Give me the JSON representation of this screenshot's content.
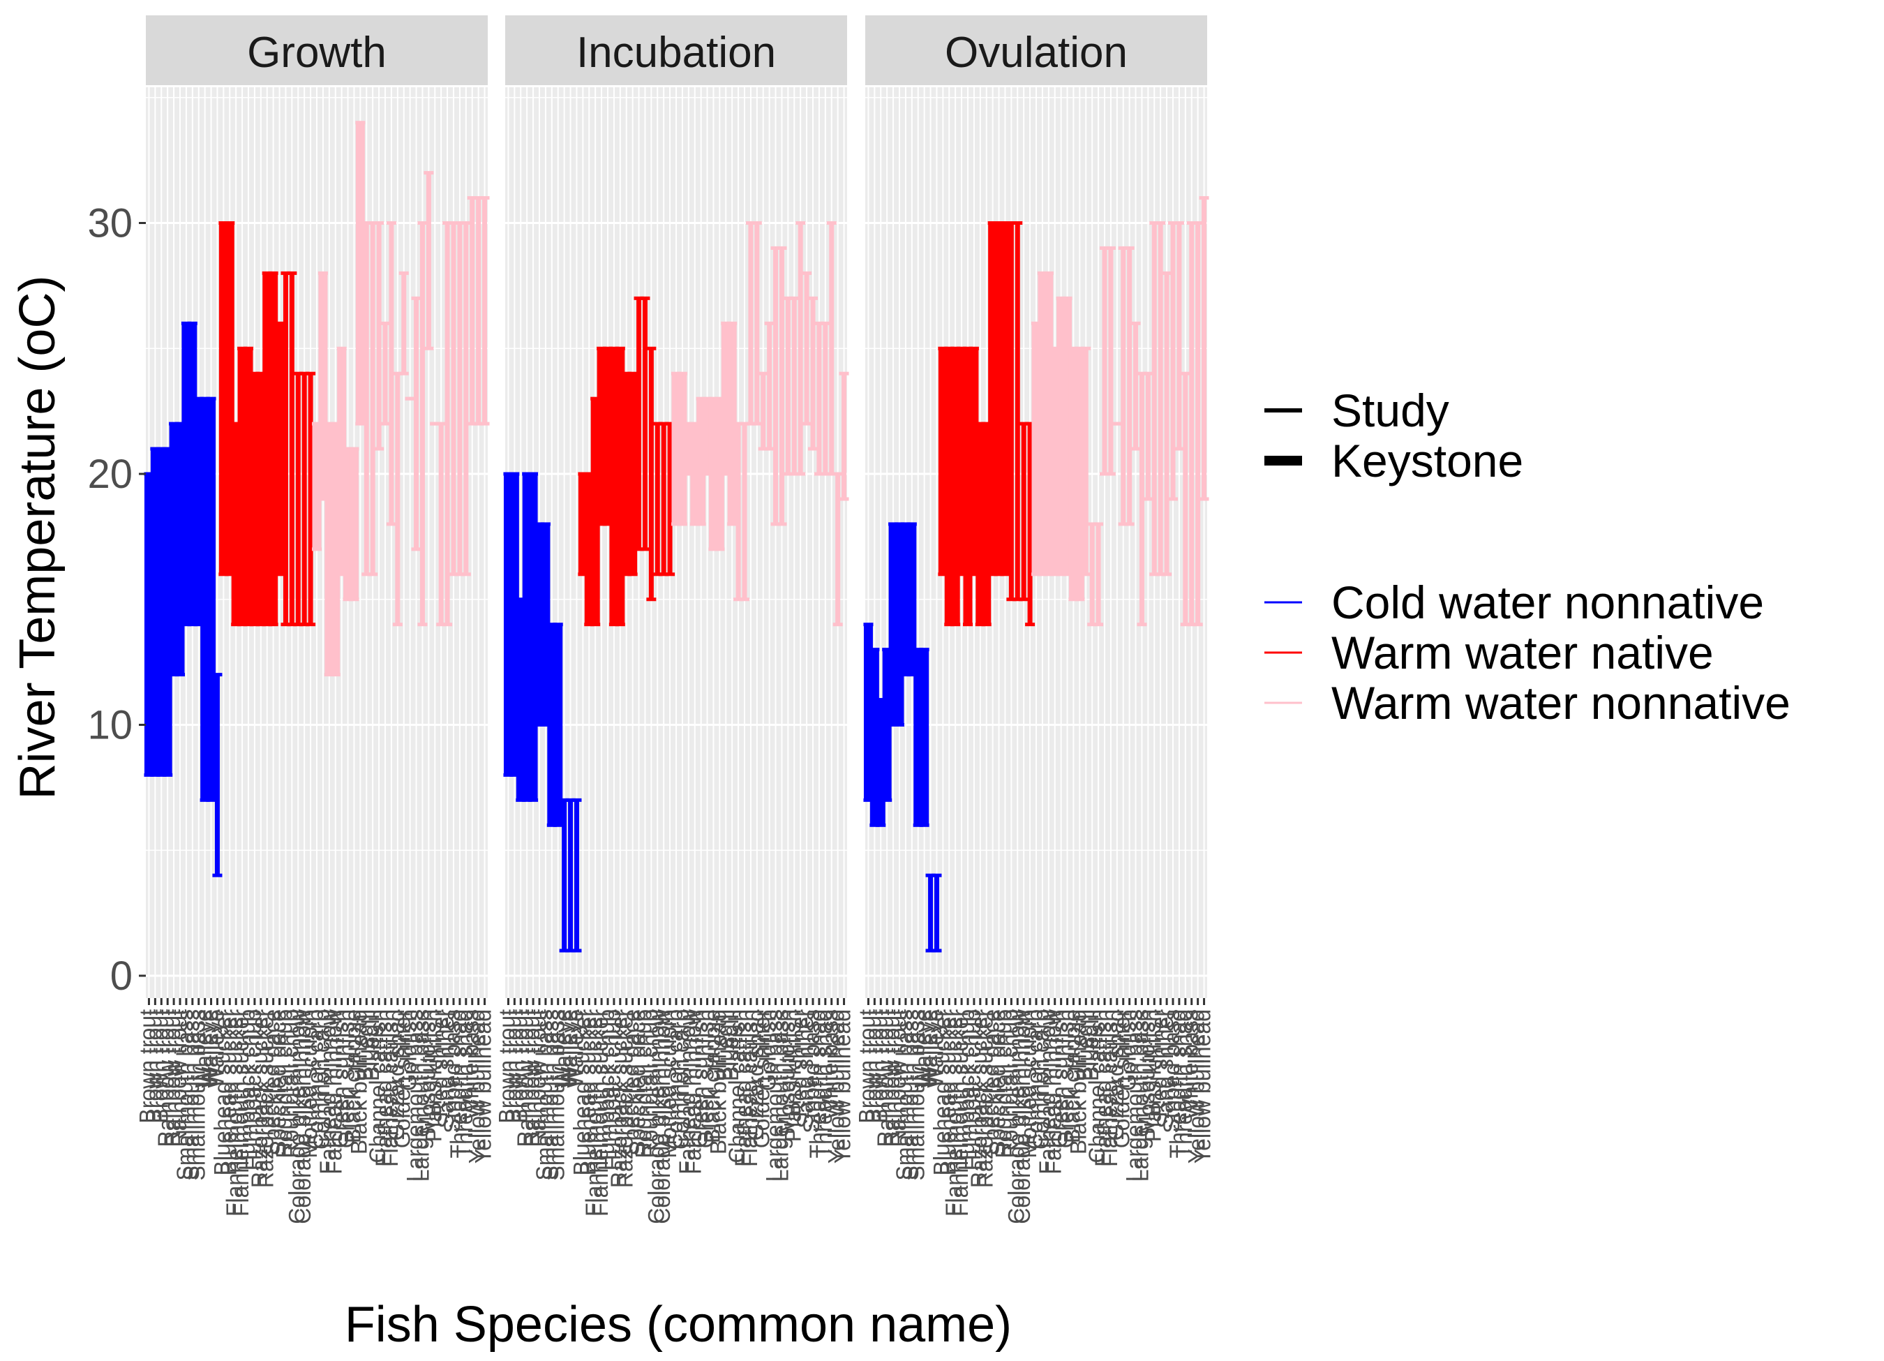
{
  "chart_data": {
    "type": "errorbar-range",
    "xlabel": "Fish Species (common name)",
    "ylabel": "River Temperature (oC)",
    "ylim": [
      0,
      35
    ],
    "y_ticks": [
      0,
      10,
      20,
      30
    ],
    "grid": true,
    "legend_position": "right",
    "facets": [
      "Growth",
      "Incubation",
      "Ovulation"
    ],
    "legend_linetype": [
      {
        "label": "Study",
        "size": "thin"
      },
      {
        "label": "Keystone",
        "size": "thick"
      }
    ],
    "legend_color": [
      {
        "label": "Cold water nonnative",
        "color": "#0000FF"
      },
      {
        "label": "Warm water native",
        "color": "#FF0000"
      },
      {
        "label": "Warm water nonnative",
        "color": "#FFC0CB"
      }
    ],
    "species": [
      {
        "name": "Brown trout",
        "group": 0
      },
      {
        "name": "Brown trout",
        "group": 0
      },
      {
        "name": "Brown trout",
        "group": 0
      },
      {
        "name": "Rainbow trout",
        "group": 0
      },
      {
        "name": "Rainbow trout",
        "group": 0
      },
      {
        "name": "Rainbow trout",
        "group": 0
      },
      {
        "name": "Smallmouth bass",
        "group": 0
      },
      {
        "name": "Smallmouth bass",
        "group": 0
      },
      {
        "name": "Smallmouth bass",
        "group": 0
      },
      {
        "name": "Walleye",
        "group": 0
      },
      {
        "name": "Walleye",
        "group": 0
      },
      {
        "name": "Walleye",
        "group": 0
      },
      {
        "name": "Bluehead sucker",
        "group": 1
      },
      {
        "name": "Bluehead sucker",
        "group": 1
      },
      {
        "name": "Flannelmouth sucker",
        "group": 1
      },
      {
        "name": "Flannelmouth sucker",
        "group": 1
      },
      {
        "name": "Humpback chub",
        "group": 1
      },
      {
        "name": "Humpback chub",
        "group": 1
      },
      {
        "name": "Razorback sucker",
        "group": 1
      },
      {
        "name": "Razorback sucker",
        "group": 1
      },
      {
        "name": "Speckled dace",
        "group": 1
      },
      {
        "name": "Speckled dace",
        "group": 1
      },
      {
        "name": "Roundtail chub",
        "group": 1
      },
      {
        "name": "Roundtail chub",
        "group": 1
      },
      {
        "name": "Colorado pikeminnow",
        "group": 1
      },
      {
        "name": "Colorado pikeminnow",
        "group": 1
      },
      {
        "name": "Mottled sculpin",
        "group": 1
      },
      {
        "name": "Common carp",
        "group": 2
      },
      {
        "name": "Common carp",
        "group": 2
      },
      {
        "name": "Fathead minnow",
        "group": 2
      },
      {
        "name": "Fathead minnow",
        "group": 2
      },
      {
        "name": "Green sunfish",
        "group": 2
      },
      {
        "name": "Green sunfish",
        "group": 2
      },
      {
        "name": "Black crappie",
        "group": 2
      },
      {
        "name": "Black bullhead",
        "group": 2
      },
      {
        "name": "Bluegill",
        "group": 2
      },
      {
        "name": "Bluegill",
        "group": 2
      },
      {
        "name": "Channel catfish",
        "group": 2
      },
      {
        "name": "Flathead catfish",
        "group": 2
      },
      {
        "name": "Flathead catfish",
        "group": 2
      },
      {
        "name": "Gizzard shad",
        "group": 2
      },
      {
        "name": "Golden shiner",
        "group": 2
      },
      {
        "name": "Goldfish",
        "group": 2
      },
      {
        "name": "Largemouth bass",
        "group": 2
      },
      {
        "name": "Largemouth bass",
        "group": 2
      },
      {
        "name": "Mosquitofish",
        "group": 2
      },
      {
        "name": "Plains killifish",
        "group": 2
      },
      {
        "name": "Red shiner",
        "group": 2
      },
      {
        "name": "Sand shiner",
        "group": 2
      },
      {
        "name": "Striped bass",
        "group": 2
      },
      {
        "name": "Threadfin shad",
        "group": 2
      },
      {
        "name": "Threadfin shad",
        "group": 2
      },
      {
        "name": "White bass",
        "group": 2
      },
      {
        "name": "Yellow bullhead",
        "group": 2
      },
      {
        "name": "Yellow bullhead",
        "group": 2
      }
    ],
    "panels": {
      "Growth": [
        [
          8,
          20,
          1
        ],
        [
          8,
          21,
          1
        ],
        [
          8,
          21,
          1
        ],
        [
          8,
          21,
          1
        ],
        [
          12,
          22,
          1
        ],
        [
          12,
          22,
          1
        ],
        [
          14,
          26,
          1
        ],
        [
          14,
          26,
          1
        ],
        [
          14,
          23,
          1
        ],
        [
          7,
          23,
          1
        ],
        [
          7,
          23,
          1
        ],
        [
          4,
          12,
          0
        ],
        [
          16,
          30,
          1
        ],
        [
          16,
          30,
          1
        ],
        [
          14,
          22,
          1
        ],
        [
          14,
          25,
          1
        ],
        [
          14,
          25,
          1
        ],
        [
          14,
          24,
          1
        ],
        [
          14,
          24,
          1
        ],
        [
          14,
          28,
          1
        ],
        [
          14,
          28,
          1
        ],
        [
          16,
          26,
          1
        ],
        [
          14,
          28,
          0
        ],
        [
          14,
          28,
          0
        ],
        [
          14,
          24,
          0
        ],
        [
          14,
          24,
          0
        ],
        [
          14,
          24,
          0
        ],
        [
          17,
          22,
          1
        ],
        [
          19,
          28,
          1
        ],
        [
          12,
          22,
          1
        ],
        [
          12,
          22,
          1
        ],
        [
          16,
          25,
          1
        ],
        [
          15,
          21,
          1
        ],
        [
          15,
          21,
          1
        ],
        [
          22,
          34,
          1
        ],
        [
          16,
          30,
          0
        ],
        [
          16,
          30,
          0
        ],
        [
          21,
          30,
          0
        ],
        [
          22,
          26,
          0
        ],
        [
          18,
          30,
          0
        ],
        [
          14,
          24,
          0
        ],
        [
          24,
          28,
          0
        ],
        [
          23,
          23,
          0
        ],
        [
          17,
          27,
          0
        ],
        [
          14,
          30,
          0
        ],
        [
          25,
          32,
          0
        ],
        [
          22,
          22,
          0
        ],
        [
          14,
          22,
          0
        ],
        [
          14,
          30,
          0
        ],
        [
          16,
          30,
          0
        ],
        [
          16,
          30,
          0
        ],
        [
          16,
          30,
          0
        ],
        [
          22,
          31,
          0
        ],
        [
          22,
          31,
          0
        ],
        [
          22,
          31,
          0
        ]
      ],
      "Incubation": [
        [
          8,
          20,
          1
        ],
        [
          8,
          20,
          1
        ],
        [
          7,
          15,
          1
        ],
        [
          7,
          20,
          1
        ],
        [
          7,
          20,
          1
        ],
        [
          10,
          18,
          1
        ],
        [
          10,
          18,
          1
        ],
        [
          6,
          14,
          1
        ],
        [
          6,
          14,
          1
        ],
        [
          1,
          7,
          0
        ],
        [
          1,
          7,
          0
        ],
        [
          1,
          7,
          0
        ],
        [
          16,
          20,
          1
        ],
        [
          14,
          20,
          1
        ],
        [
          14,
          23,
          1
        ],
        [
          18,
          25,
          1
        ],
        [
          18,
          25,
          1
        ],
        [
          14,
          25,
          1
        ],
        [
          14,
          25,
          1
        ],
        [
          16,
          24,
          1
        ],
        [
          16,
          24,
          1
        ],
        [
          17,
          27,
          0
        ],
        [
          17,
          27,
          0
        ],
        [
          15,
          25,
          0
        ],
        [
          16,
          22,
          0
        ],
        [
          16,
          22,
          0
        ],
        [
          16,
          22,
          0
        ],
        [
          18,
          24,
          1
        ],
        [
          18,
          24,
          1
        ],
        [
          20,
          22,
          1
        ],
        [
          18,
          22,
          1
        ],
        [
          18,
          23,
          1
        ],
        [
          20,
          23,
          1
        ],
        [
          17,
          23,
          1
        ],
        [
          17,
          23,
          1
        ],
        [
          20,
          26,
          1
        ],
        [
          18,
          26,
          1
        ],
        [
          15,
          22,
          0
        ],
        [
          15,
          22,
          0
        ],
        [
          22,
          30,
          0
        ],
        [
          22,
          30,
          0
        ],
        [
          21,
          24,
          0
        ],
        [
          21,
          26,
          0
        ],
        [
          18,
          29,
          0
        ],
        [
          18,
          29,
          0
        ],
        [
          20,
          27,
          0
        ],
        [
          20,
          27,
          0
        ],
        [
          20,
          30,
          0
        ],
        [
          22,
          28,
          0
        ],
        [
          21,
          27,
          0
        ],
        [
          20,
          26,
          0
        ],
        [
          20,
          26,
          0
        ],
        [
          20,
          30,
          0
        ],
        [
          14,
          20,
          0
        ],
        [
          19,
          24,
          0
        ]
      ],
      "Ovulation": [
        [
          7,
          14,
          1
        ],
        [
          6,
          13,
          1
        ],
        [
          6,
          11,
          1
        ],
        [
          7,
          13,
          1
        ],
        [
          10,
          18,
          1
        ],
        [
          10,
          18,
          1
        ],
        [
          12,
          18,
          1
        ],
        [
          12,
          18,
          1
        ],
        [
          6,
          13,
          1
        ],
        [
          6,
          13,
          1
        ],
        [
          1,
          4,
          0
        ],
        [
          1,
          4,
          0
        ],
        [
          16,
          25,
          1
        ],
        [
          14,
          25,
          1
        ],
        [
          14,
          25,
          1
        ],
        [
          16,
          25,
          1
        ],
        [
          14,
          25,
          1
        ],
        [
          16,
          25,
          1
        ],
        [
          14,
          22,
          1
        ],
        [
          14,
          22,
          1
        ],
        [
          16,
          30,
          1
        ],
        [
          16,
          30,
          1
        ],
        [
          16,
          30,
          1
        ],
        [
          15,
          30,
          0
        ],
        [
          15,
          30,
          0
        ],
        [
          15,
          22,
          0
        ],
        [
          14,
          22,
          0
        ],
        [
          16,
          26,
          1
        ],
        [
          16,
          28,
          1
        ],
        [
          16,
          28,
          1
        ],
        [
          16,
          25,
          1
        ],
        [
          16,
          27,
          1
        ],
        [
          16,
          27,
          1
        ],
        [
          15,
          25,
          1
        ],
        [
          15,
          25,
          1
        ],
        [
          16,
          25,
          0
        ],
        [
          14,
          18,
          0
        ],
        [
          14,
          18,
          0
        ],
        [
          20,
          29,
          0
        ],
        [
          20,
          29,
          0
        ],
        [
          22,
          22,
          0
        ],
        [
          18,
          29,
          0
        ],
        [
          18,
          29,
          0
        ],
        [
          21,
          26,
          0
        ],
        [
          14,
          24,
          0
        ],
        [
          19,
          24,
          0
        ],
        [
          16,
          30,
          0
        ],
        [
          16,
          30,
          0
        ],
        [
          16,
          28,
          0
        ],
        [
          19,
          30,
          0
        ],
        [
          21,
          30,
          0
        ],
        [
          14,
          24,
          0
        ],
        [
          14,
          30,
          0
        ],
        [
          14,
          30,
          0
        ],
        [
          19,
          31,
          0
        ]
      ]
    }
  }
}
